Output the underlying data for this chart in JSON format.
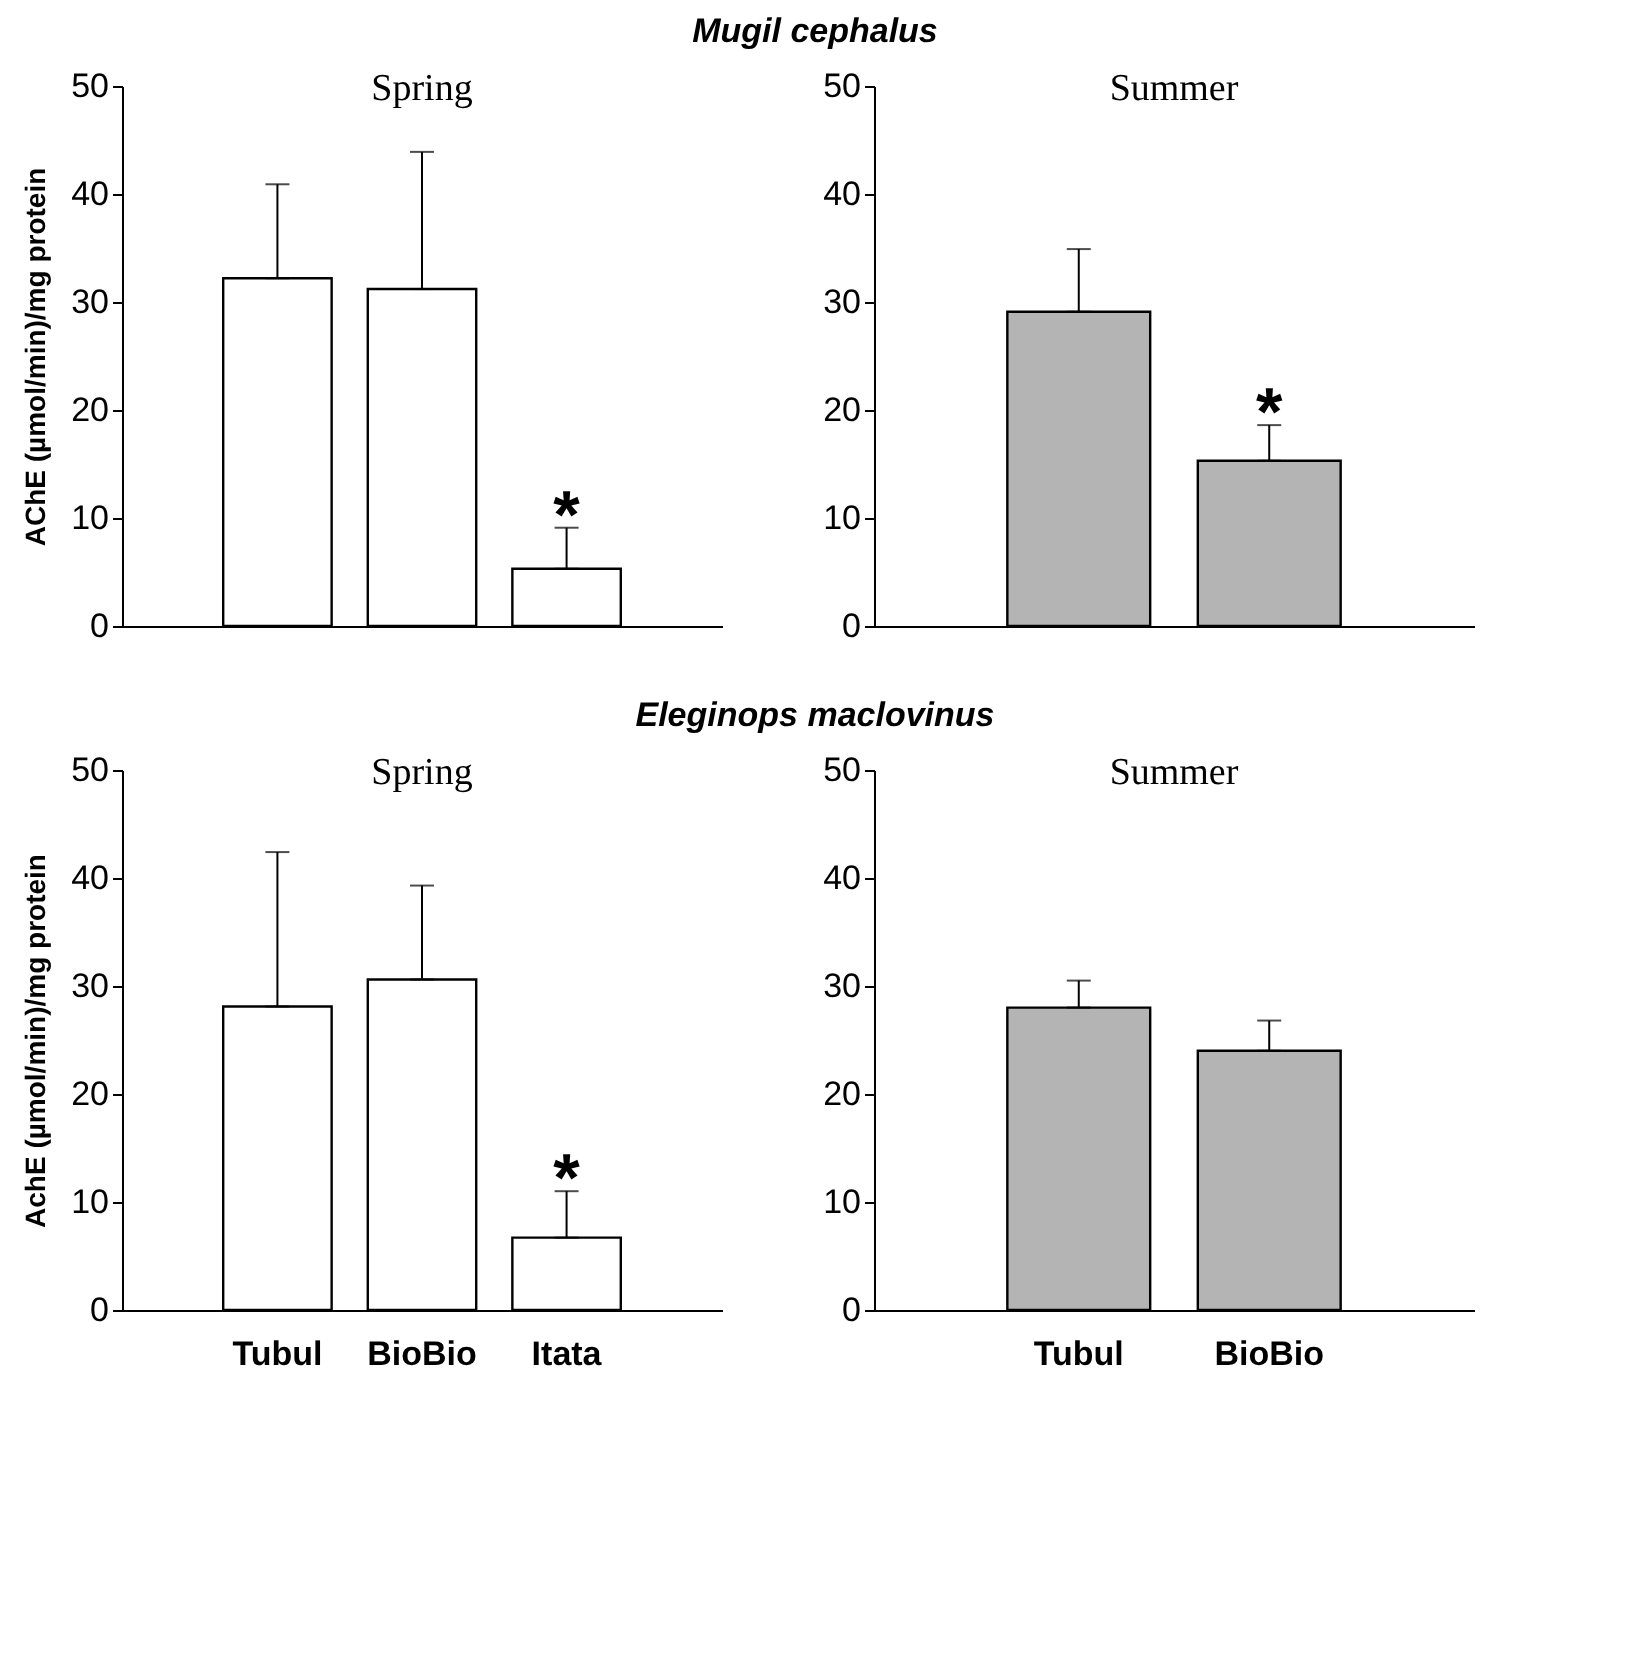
{
  "chart_data": [
    {
      "type": "bar",
      "title": "Spring",
      "ylabel": "AChE (µmol/min)/mg protein",
      "annotations": [
        "Mugil cephalus",
        {
          "text": "*",
          "x": "Itata",
          "y": 9.1
        }
      ],
      "categories": [
        "Tubul",
        "BioBio",
        "Itata"
      ],
      "tick_labels": "y",
      "color": "#ffffff",
      "values": [
        32.2,
        31.2,
        5.3
      ],
      "errors": [
        [
          32.2,
          40.9
        ],
        [
          31.2,
          43.9
        ],
        [
          5.3,
          9.1
        ]
      ],
      "ylim": [
        0,
        50
      ],
      "yticks": [
        0,
        10,
        20,
        30,
        40,
        50
      ]
    },
    {
      "type": "bar",
      "title": "Summer",
      "annotations": [
        {
          "text": "*",
          "x": "BioBio",
          "y": 18.6
        }
      ],
      "categories": [
        "Tubul",
        "BioBio"
      ],
      "tick_labels": "y",
      "color": "#b4b4b4",
      "values": [
        29.1,
        15.3
      ],
      "errors": [
        [
          29.1,
          34.9
        ],
        [
          15.3,
          18.6
        ]
      ],
      "ylim": [
        0,
        50
      ],
      "yticks": [
        0,
        10,
        20,
        30,
        40,
        50
      ]
    },
    {
      "type": "bar",
      "title": "Spring",
      "ylabel": "AchE (µmol/min)/mg protein",
      "annotations": [
        "Eleginops maclovinus",
        {
          "text": "*",
          "x": "Itata",
          "y": 11.0
        }
      ],
      "categories": [
        "Tubul",
        "BioBio",
        "Itata"
      ],
      "color": "#ffffff",
      "values": [
        28.1,
        30.6,
        6.7
      ],
      "errors": [
        [
          28.1,
          42.4
        ],
        [
          30.6,
          39.3
        ],
        [
          6.7,
          11.0
        ]
      ],
      "ylim": [
        0,
        50
      ],
      "yticks": [
        0,
        10,
        20,
        30,
        40,
        50
      ]
    },
    {
      "type": "bar",
      "title": "Summer",
      "categories": [
        "Tubul",
        "BioBio"
      ],
      "color": "#b4b4b4",
      "values": [
        28.0,
        24.0
      ],
      "errors": [
        [
          28.0,
          30.5
        ],
        [
          24.0,
          26.8
        ]
      ],
      "ylim": [
        0,
        50
      ],
      "yticks": [
        0,
        10,
        20,
        30,
        40,
        50
      ]
    }
  ]
}
